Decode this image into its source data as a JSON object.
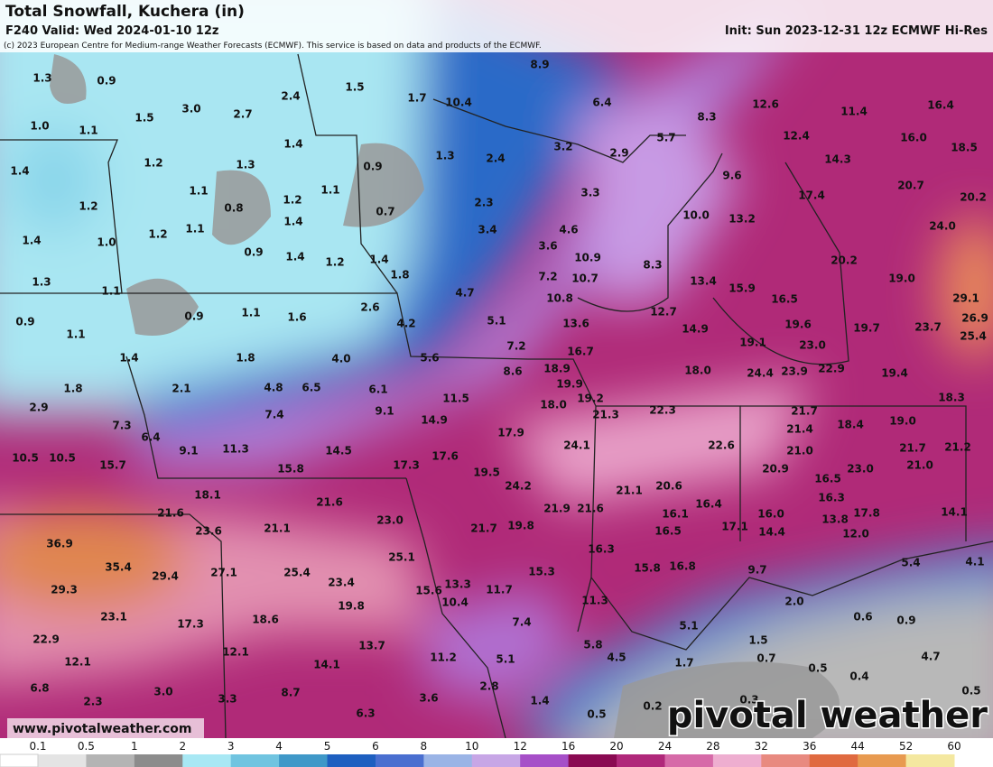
{
  "header": {
    "title": "Total Snowfall, Kuchera (in)",
    "valid": "F240 Valid: Wed 2024-01-10 12z",
    "init": "Init: Sun 2023-12-31 12z ECMWF Hi-Res",
    "credit": "(c) 2023 European Centre for Medium-range Weather Forecasts (ECMWF). This service is based on data and products of the ECMWF."
  },
  "map": {
    "labels": [
      "1.3",
      "0.9",
      "1.5",
      "3.0",
      "2.7",
      "2.4",
      "1.5",
      "1.7",
      "10.4",
      "8.9",
      "6.4",
      "8.3",
      "12.6",
      "11.4",
      "16.4",
      "1.0",
      "1.1",
      "1.4",
      "1.3",
      "2.4",
      "3.2",
      "2.9",
      "5.7",
      "12.4",
      "16.0",
      "18.5",
      "1.2",
      "1.3",
      "0.9",
      "14.3",
      "1.4",
      "1.1",
      "1.1",
      "1.2",
      "3.3",
      "9.6",
      "17.4",
      "20.7",
      "20.2",
      "1.2",
      "0.8",
      "0.7",
      "2.3",
      "10.0",
      "13.2",
      "1.4",
      "1.2",
      "1.1",
      "3.4",
      "4.6",
      "24.0",
      "1.4",
      "1.0",
      "3.6",
      "0.9",
      "1.4",
      "1.2",
      "1.4",
      "10.9",
      "8.3",
      "20.2",
      "1.8",
      "7.2",
      "10.7",
      "13.4",
      "15.9",
      "19.0",
      "1.3",
      "1.1",
      "4.7",
      "10.8",
      "16.5",
      "29.1",
      "2.6",
      "12.7",
      "0.9",
      "1.1",
      "1.6",
      "5.1",
      "26.9",
      "0.9",
      "4.2",
      "13.6",
      "14.9",
      "19.6",
      "19.7",
      "23.7",
      "1.1",
      "7.2",
      "19.1",
      "23.0",
      "25.4",
      "1.4",
      "1.8",
      "4.0",
      "5.6",
      "16.7",
      "18.9",
      "8.6",
      "18.0",
      "24.4",
      "23.9",
      "22.9",
      "19.4",
      "1.8",
      "2.1",
      "4.8",
      "6.5",
      "6.1",
      "19.9",
      "11.5",
      "19.2",
      "18.0",
      "18.3",
      "2.9",
      "9.1",
      "7.4",
      "21.3",
      "22.3",
      "21.7",
      "14.9",
      "7.3",
      "17.9",
      "21.4",
      "18.4",
      "19.0",
      "6.4",
      "24.1",
      "22.6",
      "9.1",
      "11.3",
      "14.5",
      "21.0",
      "21.7",
      "21.2",
      "10.5",
      "10.5",
      "17.6",
      "15.7",
      "15.8",
      "17.3",
      "19.5",
      "20.9",
      "16.5",
      "23.0",
      "21.0",
      "24.2",
      "21.1",
      "20.6",
      "18.1",
      "16.3",
      "21.6",
      "21.9",
      "21.6",
      "16.4",
      "21.6",
      "16.1",
      "16.0",
      "13.8",
      "17.8",
      "14.1",
      "23.0",
      "21.7",
      "19.8",
      "17.1",
      "14.4",
      "12.0",
      "21.1",
      "16.5",
      "23.6",
      "36.9",
      "25.1",
      "16.3",
      "35.4",
      "29.4",
      "27.1",
      "25.4",
      "15.8",
      "16.8",
      "9.7",
      "5.4",
      "4.1",
      "15.3",
      "23.4",
      "13.3",
      "11.7",
      "15.6",
      "29.3",
      "10.4",
      "11.3",
      "2.0",
      "19.8",
      "23.1",
      "17.3",
      "18.6",
      "7.4",
      "5.1",
      "0.6",
      "0.9",
      "13.7",
      "22.9",
      "12.1",
      "11.2",
      "5.8",
      "4.5",
      "1.5",
      "4.7",
      "12.1",
      "14.1",
      "5.1",
      "1.7",
      "0.7",
      "0.5",
      "0.4",
      "6.8",
      "3.0",
      "8.7",
      "3.6",
      "2.8",
      "0.5",
      "2.3",
      "3.3",
      "1.4",
      "0.2",
      "0.3",
      "6.3",
      "0.5"
    ],
    "website": "www.pivotalweather.com",
    "brand": "pivotal weather"
  },
  "legend": {
    "ticks": [
      "0.1",
      "0.5",
      "1",
      "2",
      "3",
      "4",
      "5",
      "6",
      "8",
      "10",
      "12",
      "16",
      "20",
      "24",
      "28",
      "32",
      "36",
      "44",
      "52",
      "60"
    ],
    "colors": [
      "#e4e4e4",
      "#b4b4b4",
      "#8c8c8c",
      "#a8e8f4",
      "#70c4e0",
      "#3f98c8",
      "#1e5fc0",
      "#4a6fd0",
      "#9ab4e6",
      "#c7a6e6",
      "#a64fc8",
      "#8a0a52",
      "#b0287a",
      "#d66aa8",
      "#eeaed0",
      "#e88a80",
      "#e06a40",
      "#e89a50",
      "#f4e8a0"
    ]
  }
}
